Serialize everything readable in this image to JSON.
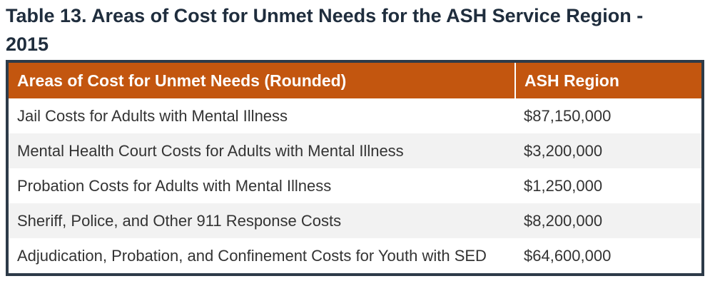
{
  "header": {
    "title": "Table 13. Areas of Cost for Unmet Needs for the ASH Service Region - 2015"
  },
  "table": {
    "columns": [
      "Areas of Cost for Unmet Needs (Rounded)",
      "ASH Region"
    ],
    "rows": [
      [
        "Jail Costs for Adults with Mental Illness",
        "$87,150,000"
      ],
      [
        "Mental Health Court Costs for Adults with Mental Illness",
        "$3,200,000"
      ],
      [
        "Probation Costs for Adults with Mental Illness",
        "$1,250,000"
      ],
      [
        "Sheriff, Police, and Other 911 Response Costs",
        "$8,200,000"
      ],
      [
        "Adjudication, Probation, and Confinement Costs for Youth with SED",
        "$64,600,000"
      ]
    ]
  }
}
